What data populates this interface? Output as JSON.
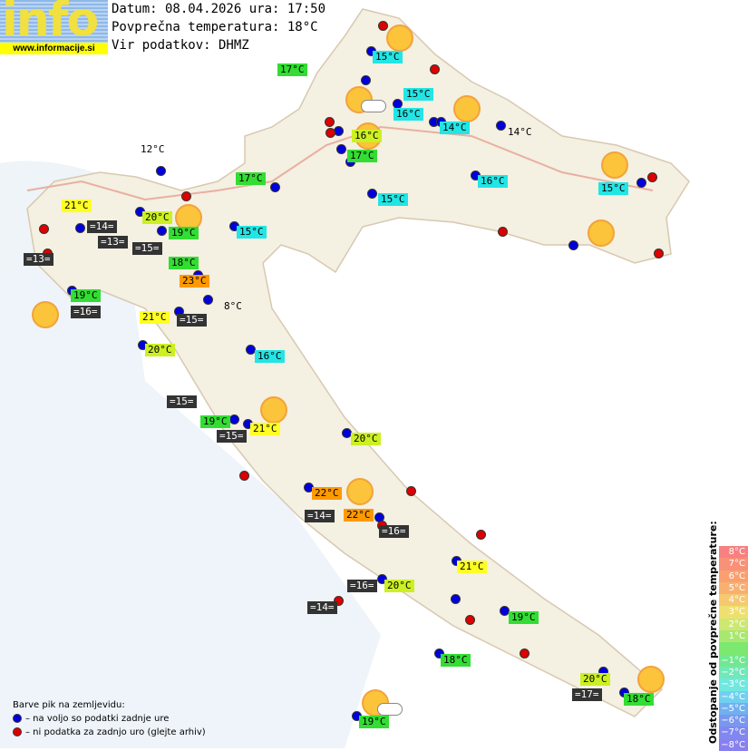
{
  "header": {
    "logo_text": "info",
    "logo_url": "www.informacije.si",
    "date_line": "Datum: 08.04.2026 ura: 17:50",
    "avg_temp_line": "Povprečna temperatura: 18°C",
    "source_line": "Vir podatkov: DHMZ"
  },
  "colors": {
    "green": "#33dd33",
    "cyan": "#22e5e5",
    "yellow": "#ffff22",
    "yellowgreen": "#ccf022",
    "orange": "#ff9900",
    "dark": "#333333",
    "plain": "transparent",
    "station_ok": "#0000dd",
    "station_missing": "#dd0000"
  },
  "stations": [
    {
      "t": "17°C",
      "c": "green"
    },
    {
      "t": "15°C",
      "c": "cyan"
    },
    {
      "t": "15°C",
      "c": "cyan"
    },
    {
      "t": "16°C",
      "c": "cyan"
    },
    {
      "t": "14°C",
      "c": "cyan"
    },
    {
      "t": "14°C",
      "c": "plain"
    },
    {
      "t": "16°C",
      "c": "yellowgreen"
    },
    {
      "t": "17°C",
      "c": "green"
    },
    {
      "t": "12°C",
      "c": "plain"
    },
    {
      "t": "17°C",
      "c": "green"
    },
    {
      "t": "16°C",
      "c": "cyan"
    },
    {
      "t": "15°C",
      "c": "cyan"
    },
    {
      "t": "15°C",
      "c": "cyan"
    },
    {
      "t": "21°C",
      "c": "yellow"
    },
    {
      "t": "20°C",
      "c": "yellowgreen"
    },
    {
      "t": "15°C",
      "c": "cyan"
    },
    {
      "t": "=14=",
      "c": "dark"
    },
    {
      "t": "=13=",
      "c": "dark"
    },
    {
      "t": "19°C",
      "c": "green"
    },
    {
      "t": "18°C",
      "c": "green"
    },
    {
      "t": "=15=",
      "c": "dark"
    },
    {
      "t": "=13=",
      "c": "dark"
    },
    {
      "t": "23°C",
      "c": "orange"
    },
    {
      "t": "8°C",
      "c": "plain"
    },
    {
      "t": "19°C",
      "c": "green"
    },
    {
      "t": "=16=",
      "c": "dark"
    },
    {
      "t": "21°C",
      "c": "yellow"
    },
    {
      "t": "=15=",
      "c": "dark"
    },
    {
      "t": "20°C",
      "c": "yellowgreen"
    },
    {
      "t": "16°C",
      "c": "cyan"
    },
    {
      "t": "=15=",
      "c": "dark"
    },
    {
      "t": "19°C",
      "c": "green"
    },
    {
      "t": "=15=",
      "c": "dark"
    },
    {
      "t": "21°C",
      "c": "yellow"
    },
    {
      "t": "20°C",
      "c": "yellowgreen"
    },
    {
      "t": "22°C",
      "c": "orange"
    },
    {
      "t": "=14=",
      "c": "dark"
    },
    {
      "t": "22°C",
      "c": "orange"
    },
    {
      "t": "=16=",
      "c": "dark"
    },
    {
      "t": "21°C",
      "c": "yellow"
    },
    {
      "t": "=16=",
      "c": "dark"
    },
    {
      "t": "20°C",
      "c": "yellowgreen"
    },
    {
      "t": "=14=",
      "c": "dark"
    },
    {
      "t": "19°C",
      "c": "green"
    },
    {
      "t": "18°C",
      "c": "green"
    },
    {
      "t": "20°C",
      "c": "yellowgreen"
    },
    {
      "t": "=17=",
      "c": "dark"
    },
    {
      "t": "18°C",
      "c": "green"
    },
    {
      "t": "19°C",
      "c": "green"
    }
  ],
  "legend": {
    "title": "Barve pik na zemljevidu:",
    "ok": "– na voljo so podatki zadnje ure",
    "missing": "– ni podatka za zadnjo uro (glejte arhiv)"
  },
  "scale": {
    "title": "Odstopanje od povprečne temperature:",
    "steps": [
      {
        "t": "8°C",
        "c": "#f88080"
      },
      {
        "t": "7°C",
        "c": "#f99078"
      },
      {
        "t": "6°C",
        "c": "#faa070"
      },
      {
        "t": "5°C",
        "c": "#f8b070"
      },
      {
        "t": "4°C",
        "c": "#f6c870"
      },
      {
        "t": "3°C",
        "c": "#eee070"
      },
      {
        "t": "2°C",
        "c": "#cce870"
      },
      {
        "t": "1°C",
        "c": "#a8e870"
      },
      {
        "t": "",
        "c": "#7de870"
      },
      {
        "t": "−1°C",
        "c": "#70e890"
      },
      {
        "t": "−2°C",
        "c": "#70e8b8"
      },
      {
        "t": "−3°C",
        "c": "#70e8e0"
      },
      {
        "t": "−4°C",
        "c": "#70d0f0"
      },
      {
        "t": "−5°C",
        "c": "#70b0f0"
      },
      {
        "t": "−6°C",
        "c": "#7898f0"
      },
      {
        "t": "−7°C",
        "c": "#8088f0"
      },
      {
        "t": "−8°C",
        "c": "#8880f0"
      }
    ]
  }
}
